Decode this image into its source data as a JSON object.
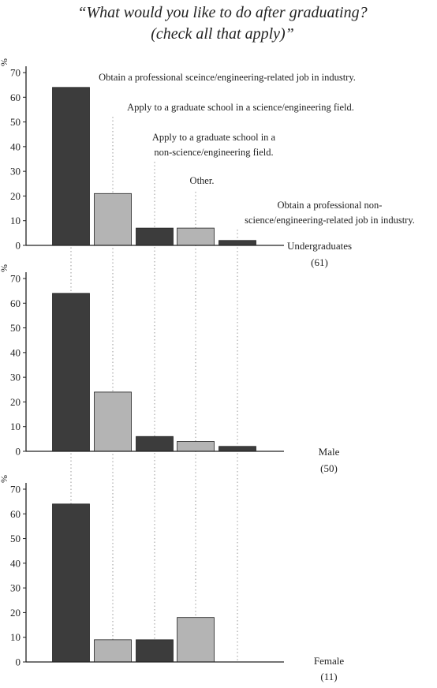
{
  "chart_data": {
    "type": "bar",
    "title": "“What would you like to do after graduating?",
    "subtitle": "(check all that apply)”",
    "ylabel": "%",
    "ylim": [
      0,
      70
    ],
    "yticks": [
      0,
      10,
      20,
      30,
      40,
      50,
      60,
      70
    ],
    "categories": [
      "Obtain a professional sceince/engineering-related job in industry.",
      "Apply to a graduate school in a science/engineering field.",
      "Apply to a graduate school in a non-science/engineering field.",
      "Other.",
      "Obtain a professional non-science/engineering-related job in industry."
    ],
    "category_label_lines": [
      [
        "Obtain a professional sceince/engineering-related job in industry."
      ],
      [
        "Apply to a graduate school in a science/engineering field."
      ],
      [
        "Apply to a graduate school in a",
        "non-science/engineering field."
      ],
      [
        "Other."
      ],
      [
        "Obtain a professional non-",
        "science/engineering-related job in industry."
      ]
    ],
    "bar_colors": [
      "#3c3c3c",
      "#b4b4b4",
      "#3c3c3c",
      "#b4b4b4",
      "#3c3c3c"
    ],
    "panels": [
      {
        "name": "Undergraduates",
        "count": "(61)",
        "values": [
          64,
          21,
          7,
          7,
          2
        ]
      },
      {
        "name": "Male",
        "count": "(50)",
        "values": [
          64,
          24,
          6,
          4,
          2
        ]
      },
      {
        "name": "Female",
        "count": "(11)",
        "values": [
          64,
          9,
          9,
          18,
          0
        ]
      }
    ],
    "grid": false,
    "legend": "none"
  }
}
